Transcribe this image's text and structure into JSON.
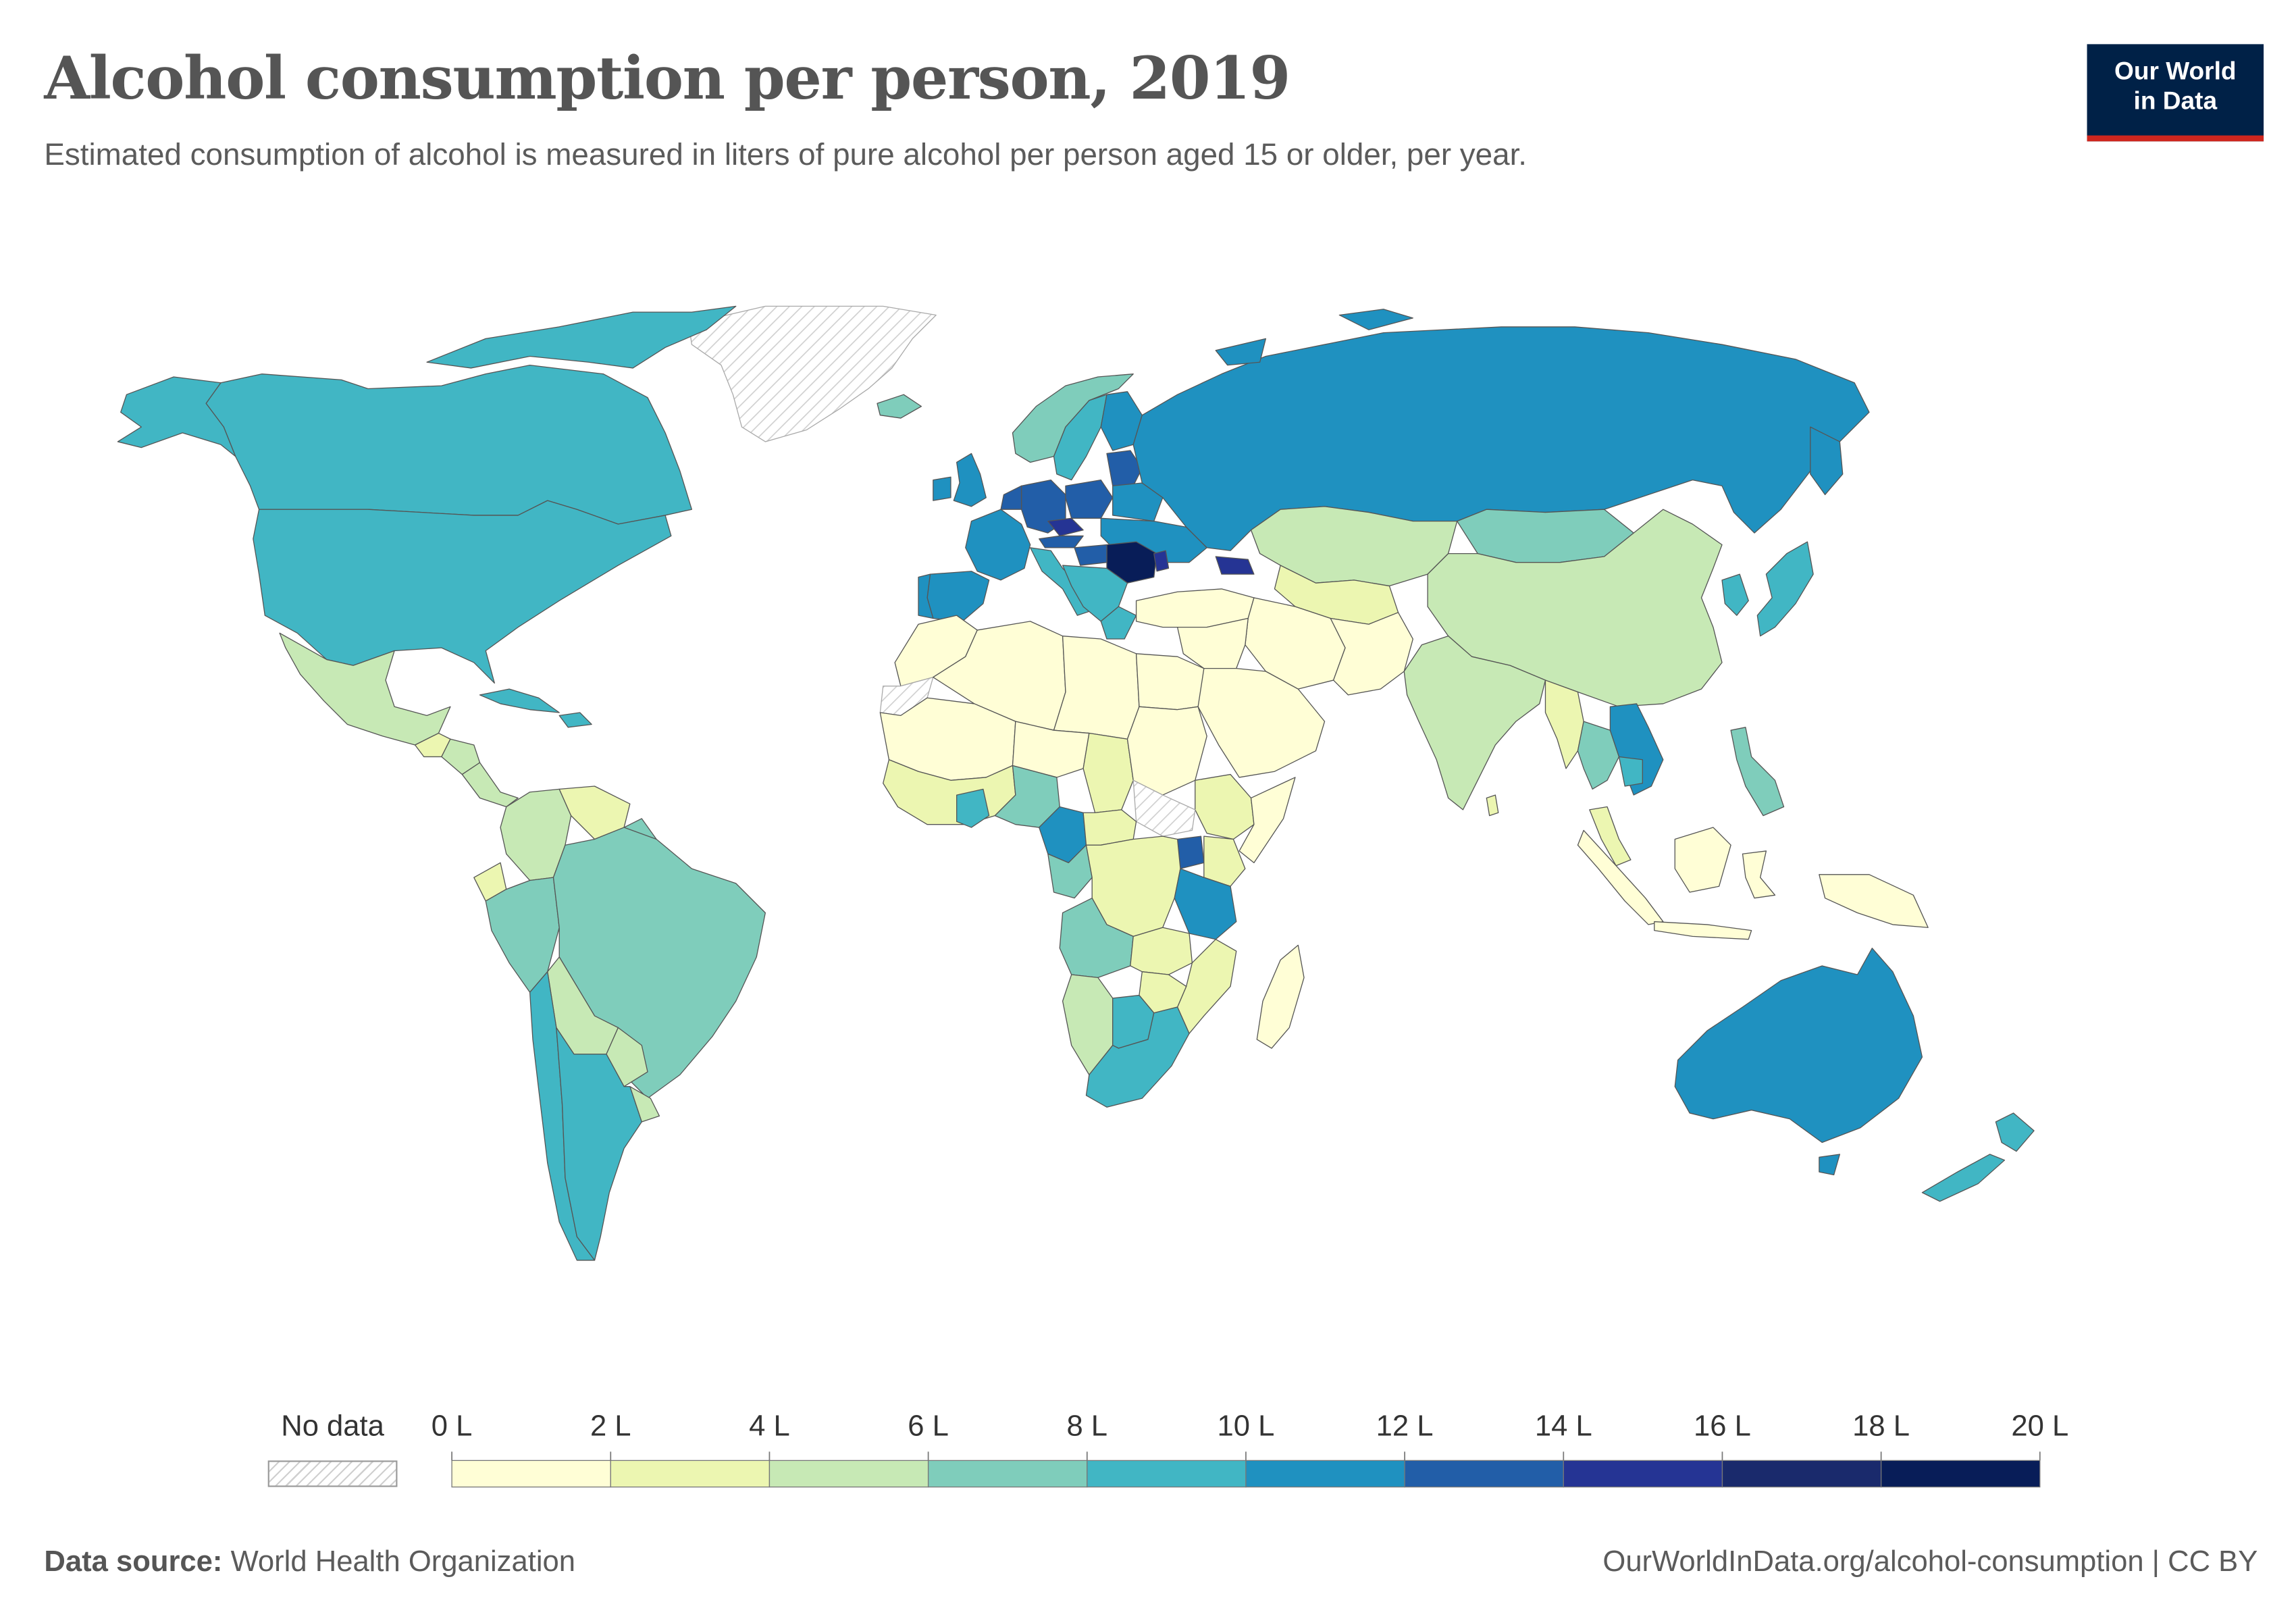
{
  "header": {
    "title": "Alcohol consumption per person, 2019",
    "subtitle": "Estimated consumption of alcohol is measured in liters of pure alcohol per person aged 15 or older, per year."
  },
  "logo": {
    "line1": "Our World",
    "line2": "in Data"
  },
  "map": {
    "no_data_label": "No data",
    "bins": [
      {
        "from": 0,
        "to": 2,
        "color": "#fffed6"
      },
      {
        "from": 2,
        "to": 4,
        "color": "#ecf6b1"
      },
      {
        "from": 4,
        "to": 6,
        "color": "#c7e9b5"
      },
      {
        "from": 6,
        "to": 8,
        "color": "#7fcdbb"
      },
      {
        "from": 8,
        "to": 10,
        "color": "#41b6c4"
      },
      {
        "from": 10,
        "to": 12,
        "color": "#1f91c0"
      },
      {
        "from": 12,
        "to": 14,
        "color": "#225ea8"
      },
      {
        "from": 14,
        "to": 16,
        "color": "#253494"
      },
      {
        "from": 16,
        "to": 18,
        "color": "#1a2a6c"
      },
      {
        "from": 18,
        "to": 20,
        "color": "#081d58"
      }
    ],
    "tick_labels": [
      "0 L",
      "2 L",
      "4 L",
      "6 L",
      "8 L",
      "10 L",
      "12 L",
      "14 L",
      "16 L",
      "18 L",
      "20 L"
    ],
    "colors": {
      "no_data": "#eeeeee",
      "border": "#555555",
      "nodata_hatch": "#cfcfcf"
    }
  },
  "footer": {
    "source_label": "Data source:",
    "source_value": "World Health Organization",
    "url": "OurWorldInData.org/alcohol-consumption | CC BY"
  }
}
